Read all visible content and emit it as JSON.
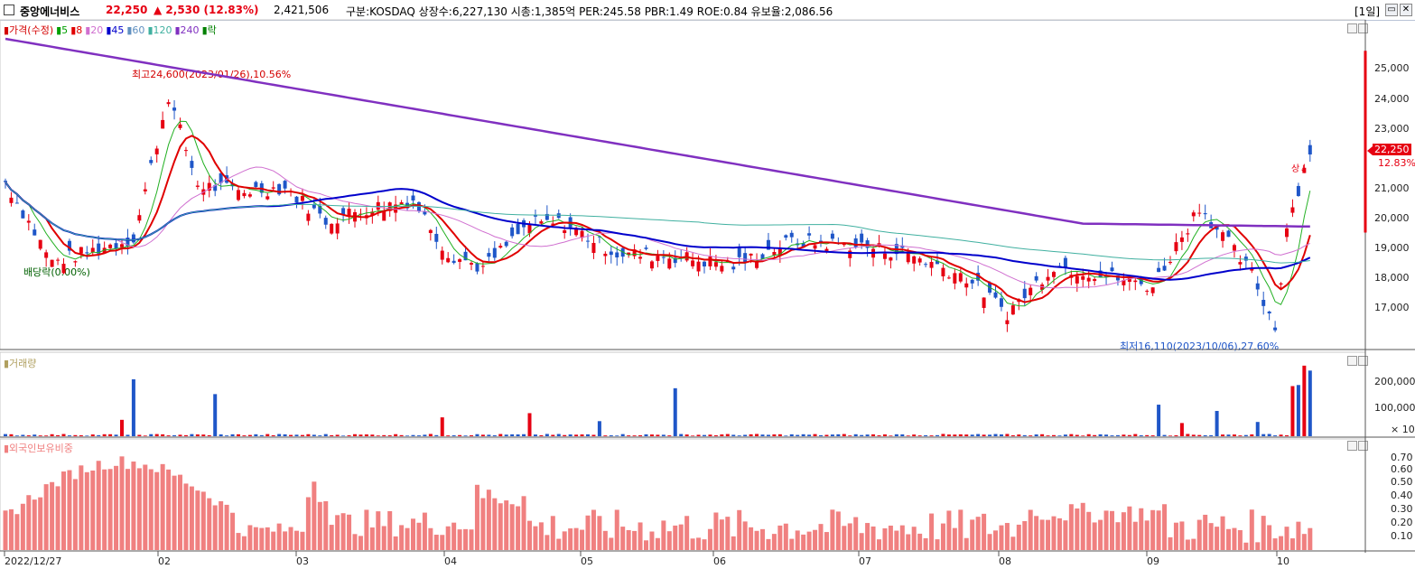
{
  "header": {
    "stock_name": "중앙에너비스",
    "price": "22,250",
    "change": "▲ 2,530 (12.83%)",
    "volume": "2,421,506",
    "info": "구분:KOSDAQ 상장수:6,227,130 시총:1,385억 PER:245.58 PBR:1.49 ROE:0.84 유보율:2,086.56",
    "period": "[1일]",
    "restore_glyph": "▭",
    "close_glyph": "✕"
  },
  "price_panel": {
    "legend": [
      {
        "text": "▮가격(수정)",
        "color": "#d40000"
      },
      {
        "text": "▮5",
        "color": "#00a000"
      },
      {
        "text": "▮8",
        "color": "#e00000"
      },
      {
        "text": "▮20",
        "color": "#d070d0"
      },
      {
        "text": "▮45",
        "color": "#0000cc"
      },
      {
        "text": "▮60",
        "color": "#6090c0"
      },
      {
        "text": "▮120",
        "color": "#40b0a0"
      },
      {
        "text": "▮240",
        "color": "#8030c0"
      },
      {
        "text": "▮락",
        "color": "#008000"
      }
    ],
    "yticks": [
      "25,000",
      "24,000",
      "23,000",
      "21,000",
      "20,000",
      "19,000",
      "18,000",
      "17,000"
    ],
    "current_price_label": "22,250",
    "current_change_label": "12.83%",
    "high_annotation": "최고24,600(2023/01/26),10.56%",
    "low_annotation": "최저16,110(2023/10/06),27.60%",
    "dividend_annotation": "배당락(0.00%)",
    "limit_up_mark": "상↓"
  },
  "volume_panel": {
    "legend": "▮거래량",
    "yticks": [
      "200,000",
      "100,000"
    ],
    "unit": "× 10"
  },
  "foreign_panel": {
    "legend": "▮외국인보유비중",
    "yticks": [
      "0.70",
      "0.60",
      "0.50",
      "0.40",
      "0.30",
      "0.20",
      "0.10"
    ]
  },
  "x_axis": {
    "labels": [
      "2022/12/27",
      "02",
      "03",
      "04",
      "05",
      "06",
      "07",
      "08",
      "09",
      "10"
    ]
  },
  "colors": {
    "up": "#e60012",
    "down": "#1f56c8",
    "ma5": "#22b022",
    "ma8": "#e00000",
    "ma20": "#d070d0",
    "ma45": "#0000cc",
    "ma120": "#40b0a0",
    "ma240": "#8030c0",
    "foreign_bar": "#f08080"
  }
}
